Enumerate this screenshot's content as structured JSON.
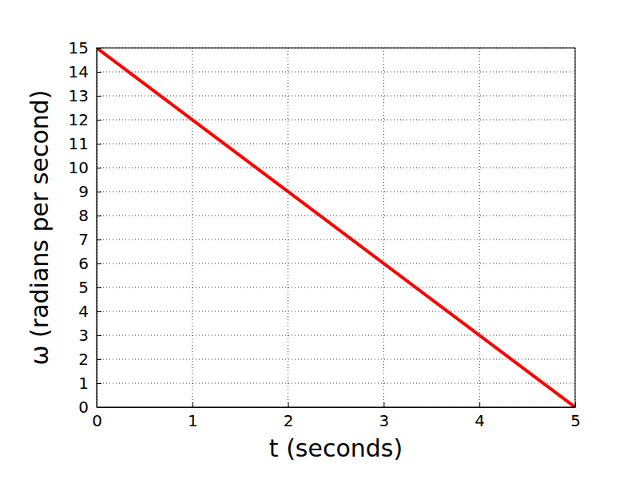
{
  "chart_data": {
    "type": "line",
    "x_label": "t (seconds)",
    "y_label": "ω (radians per second)",
    "x": [
      0,
      5
    ],
    "values": [
      15,
      0
    ],
    "color": "#ff0000",
    "xlim": [
      0,
      5
    ],
    "xticks": [
      0,
      1,
      2,
      3,
      4,
      5
    ],
    "ylim": [
      0,
      15
    ],
    "yticks": [
      0,
      1,
      2,
      3,
      4,
      5,
      6,
      7,
      8,
      9,
      10,
      11,
      12,
      13,
      14,
      15
    ],
    "grid": true
  }
}
